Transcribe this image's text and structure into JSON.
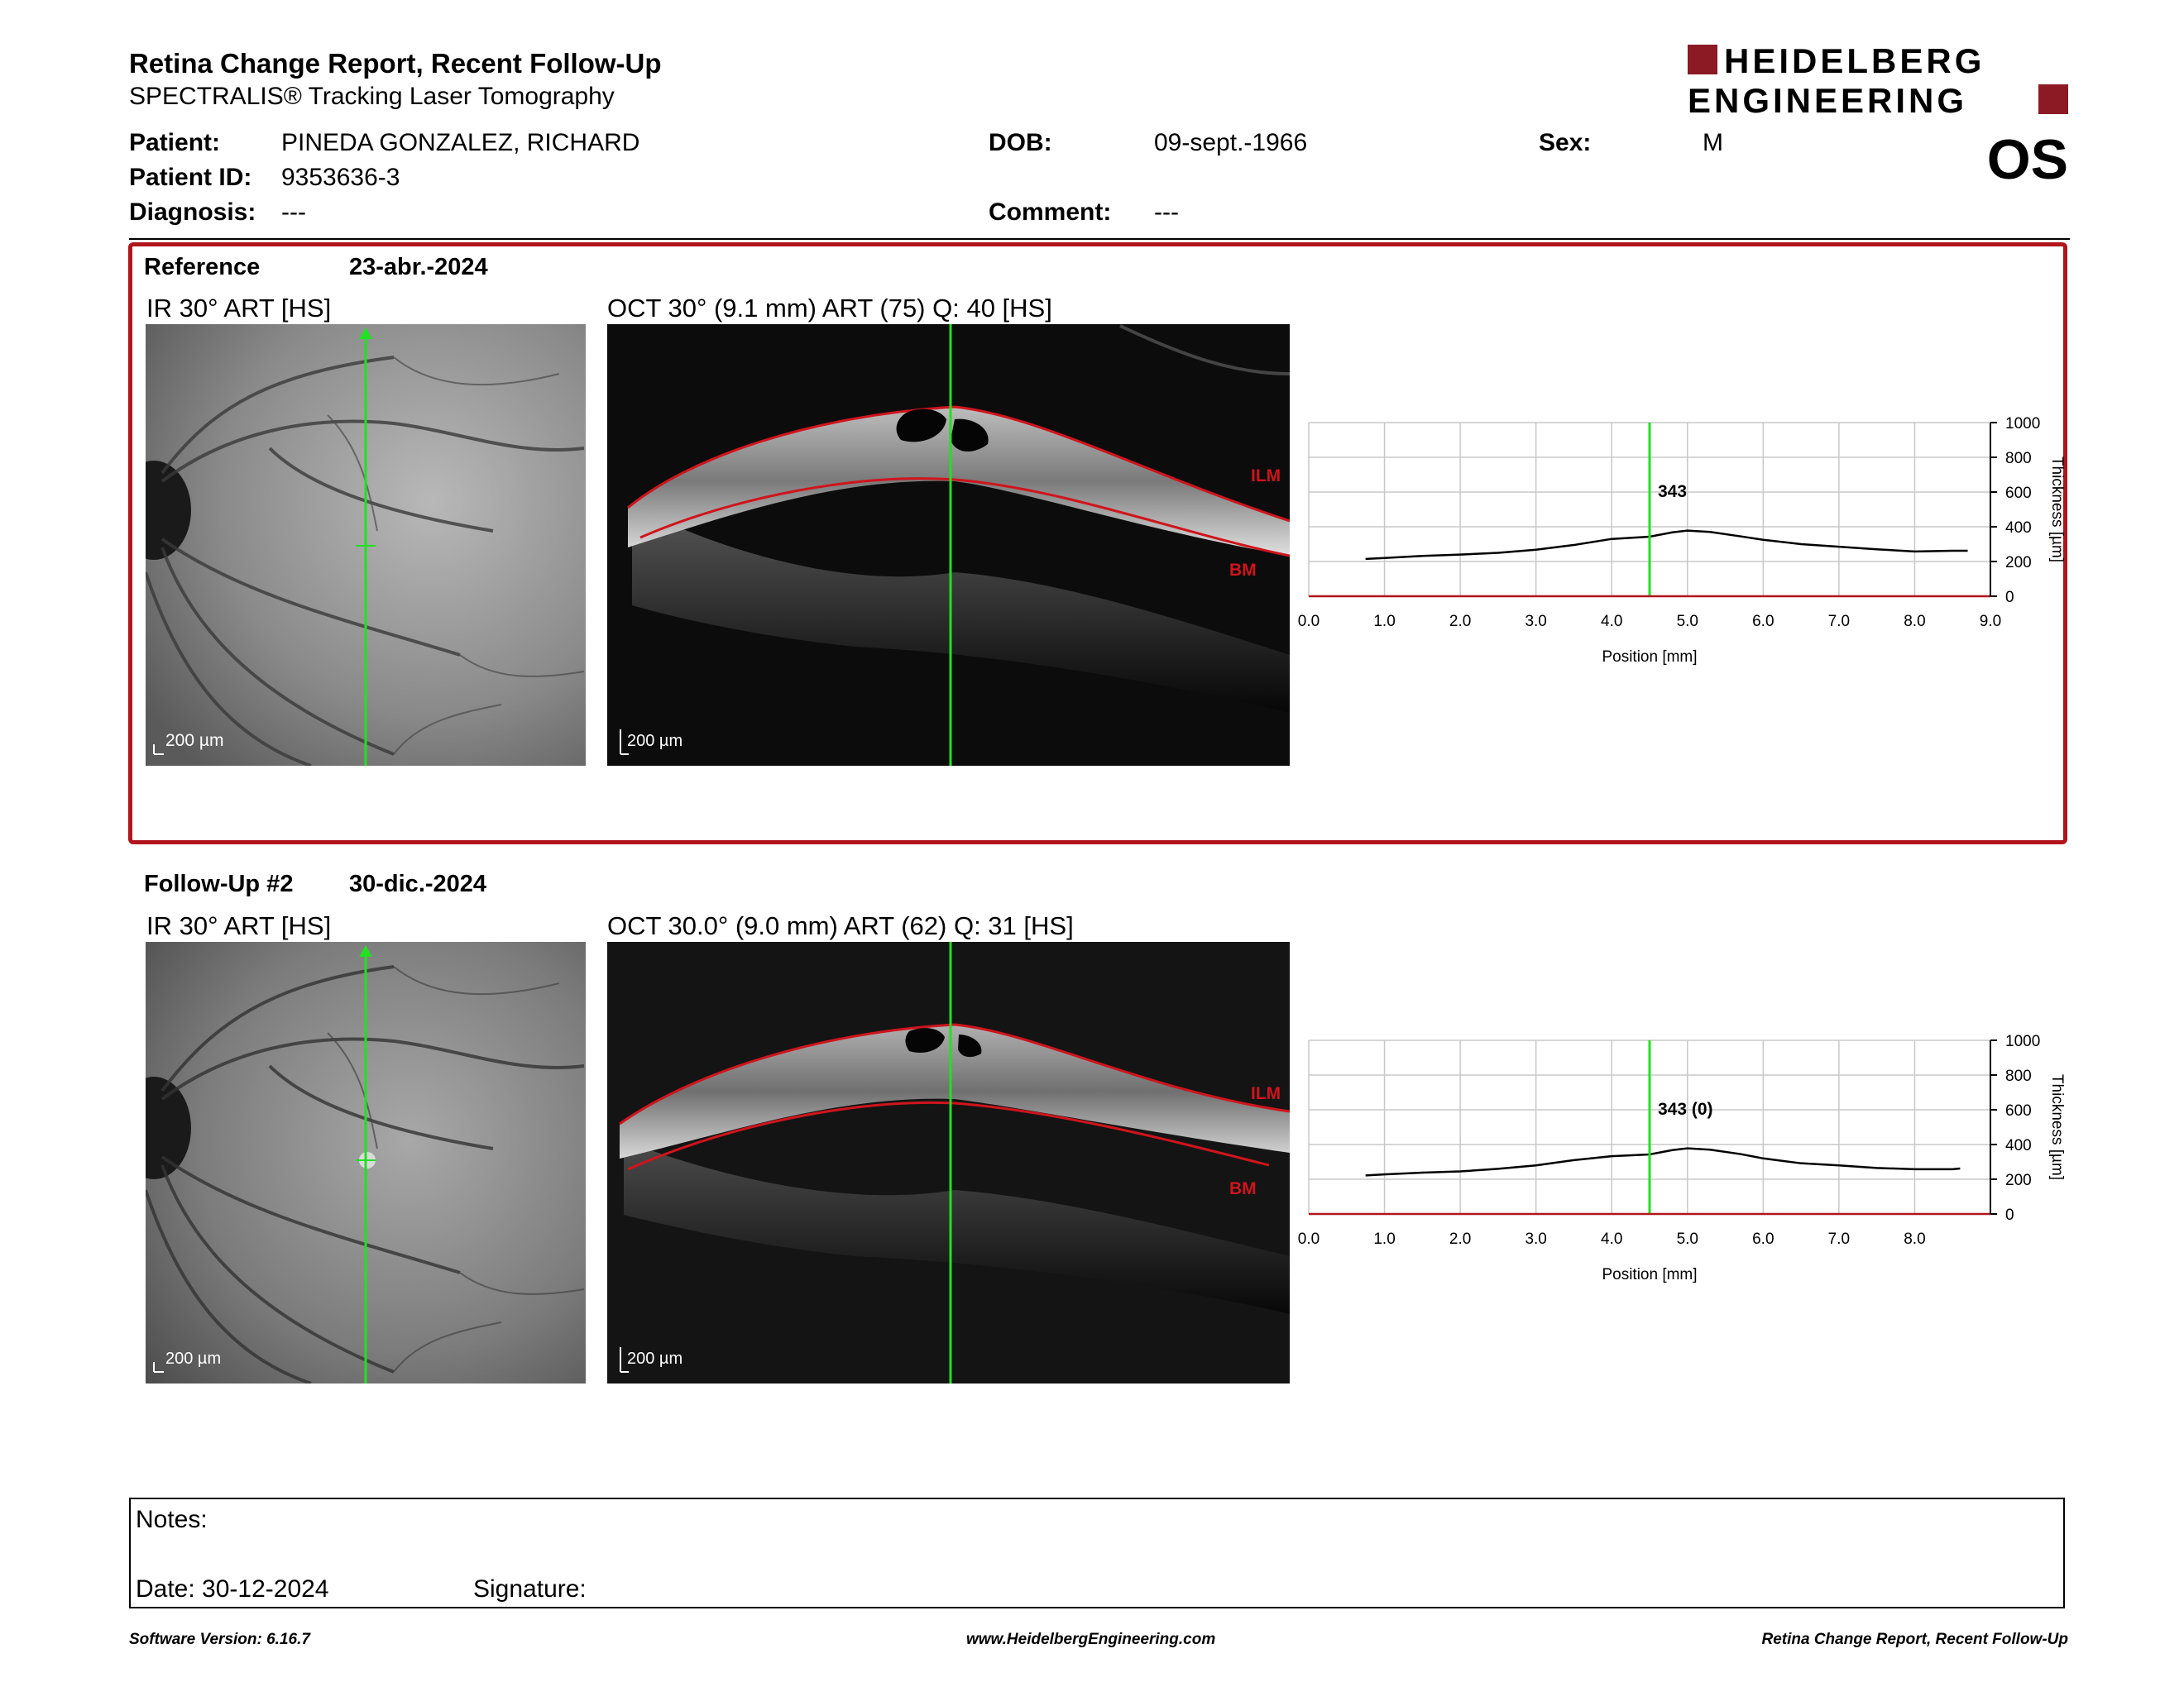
{
  "header": {
    "title": "Retina Change Report, Recent Follow-Up",
    "subtitle": "SPECTRALIS® Tracking Laser Tomography",
    "logo_line1": "HEIDELBERG",
    "logo_line2": "ENGINEERING",
    "brand_color": "#8b1a24"
  },
  "patient": {
    "name_label": "Patient:",
    "name": "PINEDA GONZALEZ, RICHARD",
    "id_label": "Patient ID:",
    "id": "9353636-3",
    "diagnosis_label": "Diagnosis:",
    "diagnosis": "---",
    "dob_label": "DOB:",
    "dob": "09-sept.-1966",
    "comment_label": "Comment:",
    "comment": "---",
    "sex_label": "Sex:",
    "sex": "M",
    "eye": "OS"
  },
  "reference": {
    "label": "Reference",
    "date": "23-abr.-2024",
    "ir_label": "IR 30° ART [HS]",
    "oct_label": "OCT 30° (9.1 mm) ART (75) Q: 40 [HS]",
    "scale": "200 µm",
    "ilm": "ILM",
    "bm": "BM",
    "box_color": "#b1141c"
  },
  "followup": {
    "label": "Follow-Up #2",
    "date": "30-dic.-2024",
    "ir_label": "IR 30° ART [HS]",
    "oct_label": "OCT 30.0° (9.0 mm) ART (62) Q: 31 [HS]",
    "scale": "200 µm",
    "ilm": "ILM",
    "bm": "BM"
  },
  "chart_data": [
    {
      "type": "line",
      "xlabel": "Position [mm]",
      "ylabel": "Thickness [µm]",
      "xlim": [
        0,
        9.0
      ],
      "ylim": [
        0,
        1000
      ],
      "x_ticks": [
        "0.0",
        "1.0",
        "2.0",
        "3.0",
        "4.0",
        "5.0",
        "6.0",
        "7.0",
        "8.0",
        "9.0"
      ],
      "y_ticks": [
        "0",
        "200",
        "400",
        "600",
        "800",
        "1000"
      ],
      "marker_x": 4.5,
      "marker_label": "343",
      "grid": true,
      "series": [
        {
          "x": [
            0.75,
            1.0,
            1.5,
            2.0,
            2.5,
            3.0,
            3.5,
            4.0,
            4.5,
            4.8,
            5.0,
            5.3,
            5.7,
            6.0,
            6.5,
            7.0,
            7.5,
            8.0,
            8.5,
            8.7
          ],
          "y": [
            215,
            220,
            232,
            240,
            250,
            268,
            295,
            330,
            343,
            368,
            378,
            370,
            345,
            325,
            300,
            285,
            270,
            258,
            262,
            262
          ]
        }
      ]
    },
    {
      "type": "line",
      "xlabel": "Position [mm]",
      "ylabel": "Thickness [µm]",
      "xlim": [
        0,
        9.0
      ],
      "ylim": [
        0,
        1000
      ],
      "x_ticks": [
        "0.0",
        "1.0",
        "2.0",
        "3.0",
        "4.0",
        "5.0",
        "6.0",
        "7.0",
        "8.0"
      ],
      "y_ticks": [
        "0",
        "200",
        "400",
        "600",
        "800",
        "1000"
      ],
      "marker_x": 4.5,
      "marker_label": "343 (0)",
      "grid": true,
      "series": [
        {
          "x": [
            0.75,
            1.0,
            1.5,
            2.0,
            2.5,
            3.0,
            3.5,
            4.0,
            4.5,
            4.8,
            5.0,
            5.3,
            5.7,
            6.0,
            6.5,
            7.0,
            7.5,
            8.0,
            8.5,
            8.6
          ],
          "y": [
            222,
            228,
            238,
            245,
            260,
            280,
            310,
            333,
            343,
            368,
            378,
            370,
            345,
            320,
            292,
            280,
            265,
            258,
            258,
            262
          ]
        }
      ]
    }
  ],
  "notes": {
    "notes_label": "Notes:",
    "date_label": "Date: 30-12-2024",
    "signature_label": "Signature:"
  },
  "footer": {
    "version": "Software Version: 6.16.7",
    "website": "www.HeidelbergEngineering.com",
    "report": "Retina Change Report, Recent Follow-Up"
  }
}
